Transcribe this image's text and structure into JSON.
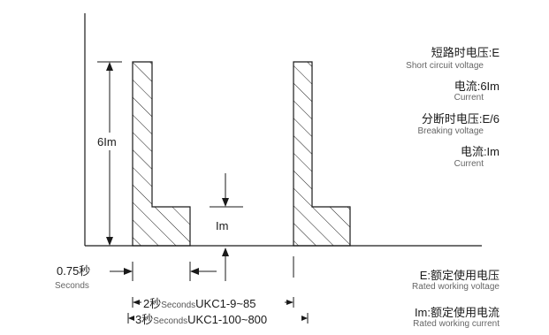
{
  "diagram": {
    "level_label": "6Im",
    "step_label": "Im",
    "gap_value": "0.75秒",
    "gap_unit": "Seconds",
    "span1": {
      "value": "2秒",
      "unit": "Seconds",
      "model": "UKC1-9~85"
    },
    "span2": {
      "value": "3秒",
      "unit": "Seconds",
      "model": "UKC1-100~800"
    }
  },
  "legend": [
    {
      "cn": "短路时电压:E",
      "en": "Short circuit voltage"
    },
    {
      "cn": "电流:6Im",
      "en": "Current"
    },
    {
      "cn": "分断时电压:E/6",
      "en": "Breaking voltage"
    },
    {
      "cn": "电流:Im",
      "en": "Current"
    },
    {
      "cn": "E:额定使用电压",
      "en": "Rated working voltage"
    },
    {
      "cn": "Im:额定使用电流",
      "en": "Rated working current"
    }
  ],
  "colors": {
    "line": "#1a1a1a",
    "secondary_text": "#666666"
  }
}
